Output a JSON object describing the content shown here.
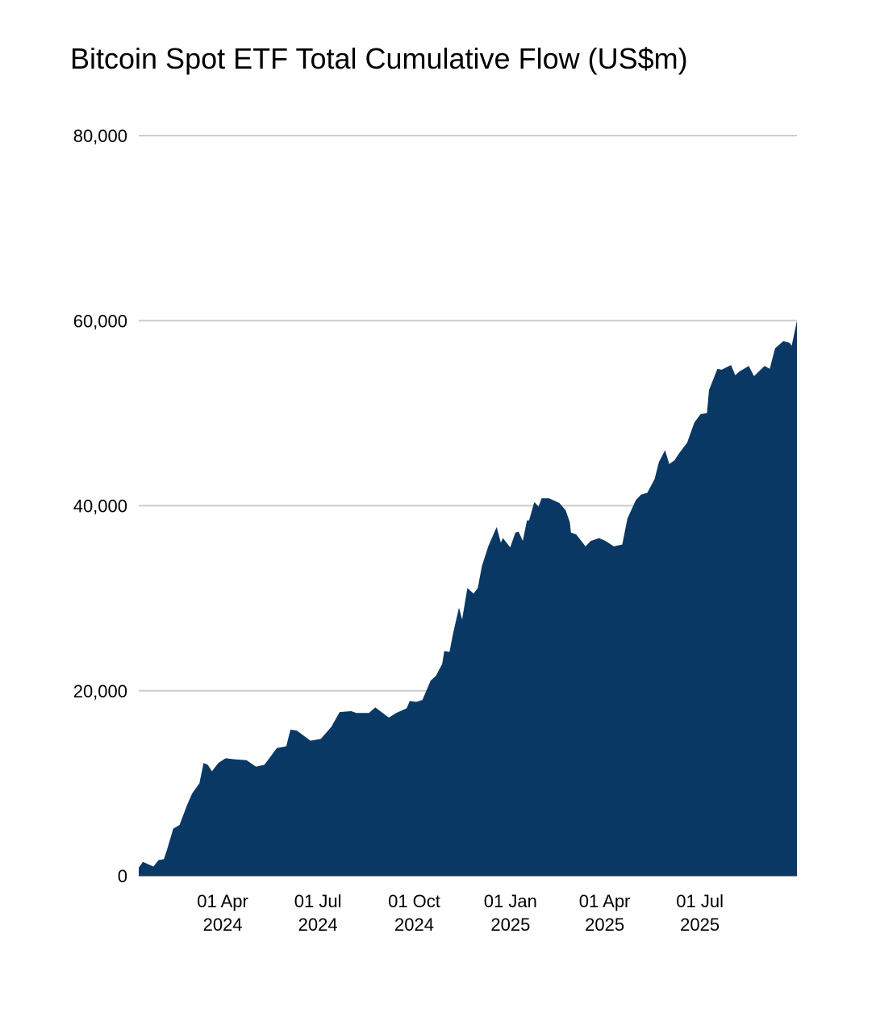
{
  "chart_data": {
    "type": "area",
    "title": "Bitcoin Spot ETF Total Cumulative Flow (US$m)",
    "xlabel": "",
    "ylabel": "",
    "ylim": [
      0,
      80000
    ],
    "xlim": [
      "2024-01-11",
      "2025-10-01"
    ],
    "grid": true,
    "fill_color": "#0a3864",
    "grid_color": "#cccccc",
    "y_ticks": [
      {
        "value": 0,
        "label": "0"
      },
      {
        "value": 20000,
        "label": "20,000"
      },
      {
        "value": 40000,
        "label": "40,000"
      },
      {
        "value": 60000,
        "label": "60,000"
      },
      {
        "value": 80000,
        "label": "80,000"
      }
    ],
    "x_ticks": [
      {
        "date": "2024-04-01",
        "label1": "01 Apr",
        "label2": "2024"
      },
      {
        "date": "2024-07-01",
        "label1": "01 Jul",
        "label2": "2024"
      },
      {
        "date": "2024-10-01",
        "label1": "01 Oct",
        "label2": "2024"
      },
      {
        "date": "2025-01-01",
        "label1": "01 Jan",
        "label2": "2025"
      },
      {
        "date": "2025-04-01",
        "label1": "01 Apr",
        "label2": "2025"
      },
      {
        "date": "2025-07-01",
        "label1": "01 Jul",
        "label2": "2025"
      }
    ],
    "x": [
      "2024-01-11",
      "2024-01-15",
      "2024-01-25",
      "2024-01-30",
      "2024-02-04",
      "2024-02-07",
      "2024-02-13",
      "2024-02-19",
      "2024-02-26",
      "2024-03-02",
      "2024-03-09",
      "2024-03-13",
      "2024-03-17",
      "2024-03-21",
      "2024-03-27",
      "2024-04-03",
      "2024-04-11",
      "2024-04-23",
      "2024-05-02",
      "2024-05-10",
      "2024-05-14",
      "2024-05-22",
      "2024-05-31",
      "2024-06-04",
      "2024-06-10",
      "2024-06-23",
      "2024-07-03",
      "2024-07-13",
      "2024-07-21",
      "2024-08-01",
      "2024-08-06",
      "2024-08-18",
      "2024-08-24",
      "2024-09-06",
      "2024-09-13",
      "2024-09-23",
      "2024-09-26",
      "2024-10-02",
      "2024-10-08",
      "2024-10-16",
      "2024-10-21",
      "2024-10-27",
      "2024-10-29",
      "2024-11-03",
      "2024-11-06",
      "2024-11-12",
      "2024-11-15",
      "2024-11-20",
      "2024-11-26",
      "2024-11-30",
      "2024-12-04",
      "2024-12-10",
      "2024-12-18",
      "2024-12-22",
      "2024-12-24",
      "2024-12-31",
      "2025-01-05",
      "2025-01-08",
      "2025-01-12",
      "2025-01-16",
      "2025-01-18",
      "2025-01-23",
      "2025-01-27",
      "2025-01-30",
      "2025-02-06",
      "2025-02-16",
      "2025-02-22",
      "2025-02-26",
      "2025-02-27",
      "2025-03-04",
      "2025-03-13",
      "2025-03-18",
      "2025-03-26",
      "2025-04-01",
      "2025-04-09",
      "2025-04-17",
      "2025-04-22",
      "2025-04-30",
      "2025-05-05",
      "2025-05-11",
      "2025-05-18",
      "2025-05-22",
      "2025-05-28",
      "2025-06-01",
      "2025-06-06",
      "2025-06-10",
      "2025-06-18",
      "2025-06-25",
      "2025-07-01",
      "2025-07-07",
      "2025-07-09",
      "2025-07-17",
      "2025-07-21",
      "2025-07-30",
      "2025-08-03",
      "2025-08-07",
      "2025-08-16",
      "2025-08-21",
      "2025-08-31",
      "2025-09-05",
      "2025-09-10",
      "2025-09-18",
      "2025-09-24",
      "2025-09-26",
      "2025-10-01"
    ],
    "values": [
      900,
      1500,
      1000,
      1700,
      1800,
      2800,
      5100,
      5500,
      7600,
      8900,
      10000,
      12200,
      12000,
      11300,
      12200,
      12700,
      12600,
      12500,
      11800,
      12000,
      12600,
      13800,
      14000,
      15800,
      15700,
      14600,
      14800,
      16100,
      17700,
      17800,
      17600,
      17600,
      18200,
      17100,
      17600,
      18100,
      18900,
      18800,
      19000,
      21100,
      21600,
      22900,
      24300,
      24200,
      26000,
      29000,
      27700,
      31100,
      30500,
      31100,
      33500,
      35600,
      37700,
      36000,
      36500,
      35500,
      37100,
      37200,
      36200,
      38400,
      38400,
      40400,
      39900,
      40800,
      40800,
      40300,
      39500,
      38200,
      37100,
      36900,
      35600,
      36200,
      36500,
      36200,
      35600,
      35800,
      38600,
      40600,
      41200,
      41400,
      42900,
      44700,
      46000,
      44500,
      44900,
      45600,
      46800,
      49000,
      49900,
      50000,
      52500,
      54800,
      54700,
      55200,
      54100,
      54500,
      55100,
      54000,
      55100,
      54800,
      57000,
      57800,
      57600,
      57300,
      60000
    ]
  }
}
